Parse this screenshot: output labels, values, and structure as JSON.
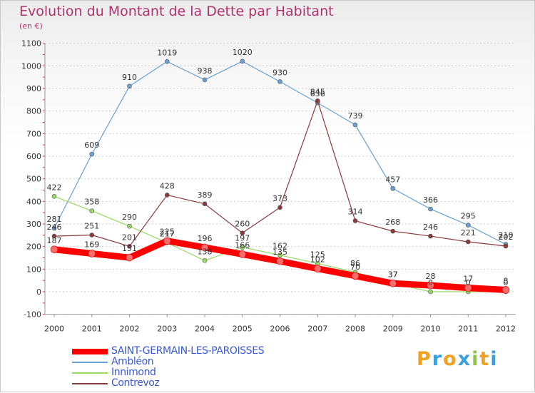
{
  "title": "Evolution du Montant de la Dette par Habitant",
  "subtitle": "(en €)",
  "logo": {
    "letters": [
      "P",
      "r",
      "o",
      "x",
      "i",
      "t",
      "i"
    ],
    "colors": [
      "#f2a01e",
      "#3aa0dc",
      "#f2a01e",
      "#3aa0dc",
      "#8cc63e",
      "#f2a01e",
      "#3aa0dc"
    ]
  },
  "chart_data": {
    "type": "line",
    "categories": [
      "2000",
      "2001",
      "2002",
      "2003",
      "2004",
      "2005",
      "2006",
      "2007",
      "2008",
      "2009",
      "2010",
      "2011",
      "2012"
    ],
    "ylim": [
      -100,
      1100
    ],
    "yticks": [
      "-100",
      "0",
      "100",
      "200",
      "300",
      "400",
      "500",
      "600",
      "700",
      "800",
      "900",
      "1000",
      "1100"
    ],
    "series": [
      {
        "name": "SAINT-GERMAIN-LES-PAROISSES",
        "color": "#ff0000",
        "emphasis": true,
        "values": [
          187,
          169,
          151,
          225,
          196,
          166,
          135,
          102,
          70,
          37,
          28,
          17,
          8
        ],
        "labels": [
          "187",
          "169",
          "151",
          "225",
          "196",
          "166",
          "135",
          "102",
          "70",
          "37",
          "28",
          "17",
          "8"
        ]
      },
      {
        "name": "Ambléon",
        "color": "#6aa0d2",
        "values": [
          281,
          609,
          910,
          1019,
          938,
          1020,
          930,
          836,
          739,
          457,
          366,
          295,
          210
        ],
        "labels": [
          "281",
          "609",
          "910",
          "1019",
          "938",
          "1020",
          "930",
          "836",
          "739",
          "457",
          "366",
          "295",
          "210"
        ]
      },
      {
        "name": "Innimond",
        "color": "#9ad864",
        "values": [
          422,
          358,
          290,
          217,
          138,
          197,
          162,
          125,
          86,
          37,
          0,
          0,
          0
        ],
        "labels": [
          "422",
          "358",
          "290",
          "217",
          "138",
          "197",
          "162",
          "125",
          "86",
          "37",
          "0",
          "0",
          "0"
        ]
      },
      {
        "name": "Contrevoz",
        "color": "#8a3a3a",
        "values": [
          246,
          251,
          201,
          428,
          389,
          260,
          373,
          845,
          314,
          268,
          246,
          221,
          202
        ],
        "labels": [
          "246",
          "251",
          "201",
          "428",
          "389",
          "260",
          "373",
          "845",
          "314",
          "268",
          "246",
          "221",
          "202"
        ]
      }
    ],
    "grid": "horizontal dashed",
    "legend": "bottom-left"
  }
}
